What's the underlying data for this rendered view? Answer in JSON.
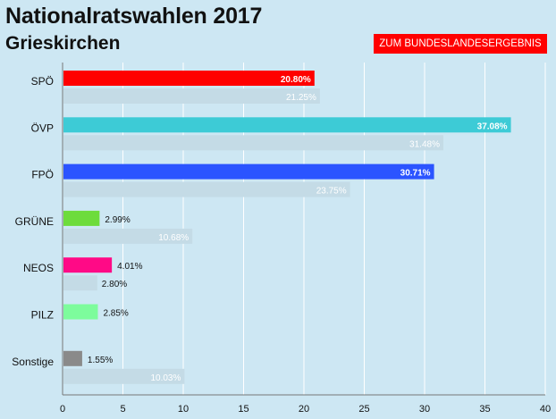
{
  "header": {
    "title": "Nationalratswahlen 2017",
    "subtitle": "Grieskirchen",
    "button_label": "ZUM BUNDESLANDESERGEBNIS"
  },
  "colors": {
    "background": "#cde7f3",
    "button": "#ff0000",
    "previous_bar": "#c4dbe6",
    "grid": "#ffffff"
  },
  "chart_data": {
    "type": "bar",
    "orientation": "horizontal",
    "title": "Nationalratswahlen 2017",
    "subtitle": "Grieskirchen",
    "categories": [
      "SPÖ",
      "ÖVP",
      "FPÖ",
      "GRÜNE",
      "NEOS",
      "PILZ",
      "Sonstige"
    ],
    "series": [
      {
        "name": "2017",
        "values": [
          20.8,
          37.08,
          30.71,
          2.99,
          4.01,
          2.85,
          1.55
        ],
        "labels": [
          "20.80%",
          "37.08%",
          "30.71%",
          "2.99%",
          "4.01%",
          "2.85%",
          "1.55%"
        ],
        "colors": [
          "#ff0000",
          "#3dcbd6",
          "#2b54ff",
          "#6ddc3c",
          "#ff0a86",
          "#7dfc9c",
          "#8a8a8a"
        ]
      },
      {
        "name": "previous",
        "values": [
          21.25,
          31.48,
          23.75,
          10.68,
          2.8,
          null,
          10.03
        ],
        "labels": [
          "21.25%",
          "31.48%",
          "23.75%",
          "10.68%",
          "2.80%",
          "",
          "10.03%"
        ],
        "color": "#c4dbe6"
      }
    ],
    "xlim": [
      0,
      40
    ],
    "xticks": [
      0,
      5,
      10,
      15,
      20,
      25,
      30,
      35,
      40
    ],
    "grid": true,
    "legend": "none"
  }
}
